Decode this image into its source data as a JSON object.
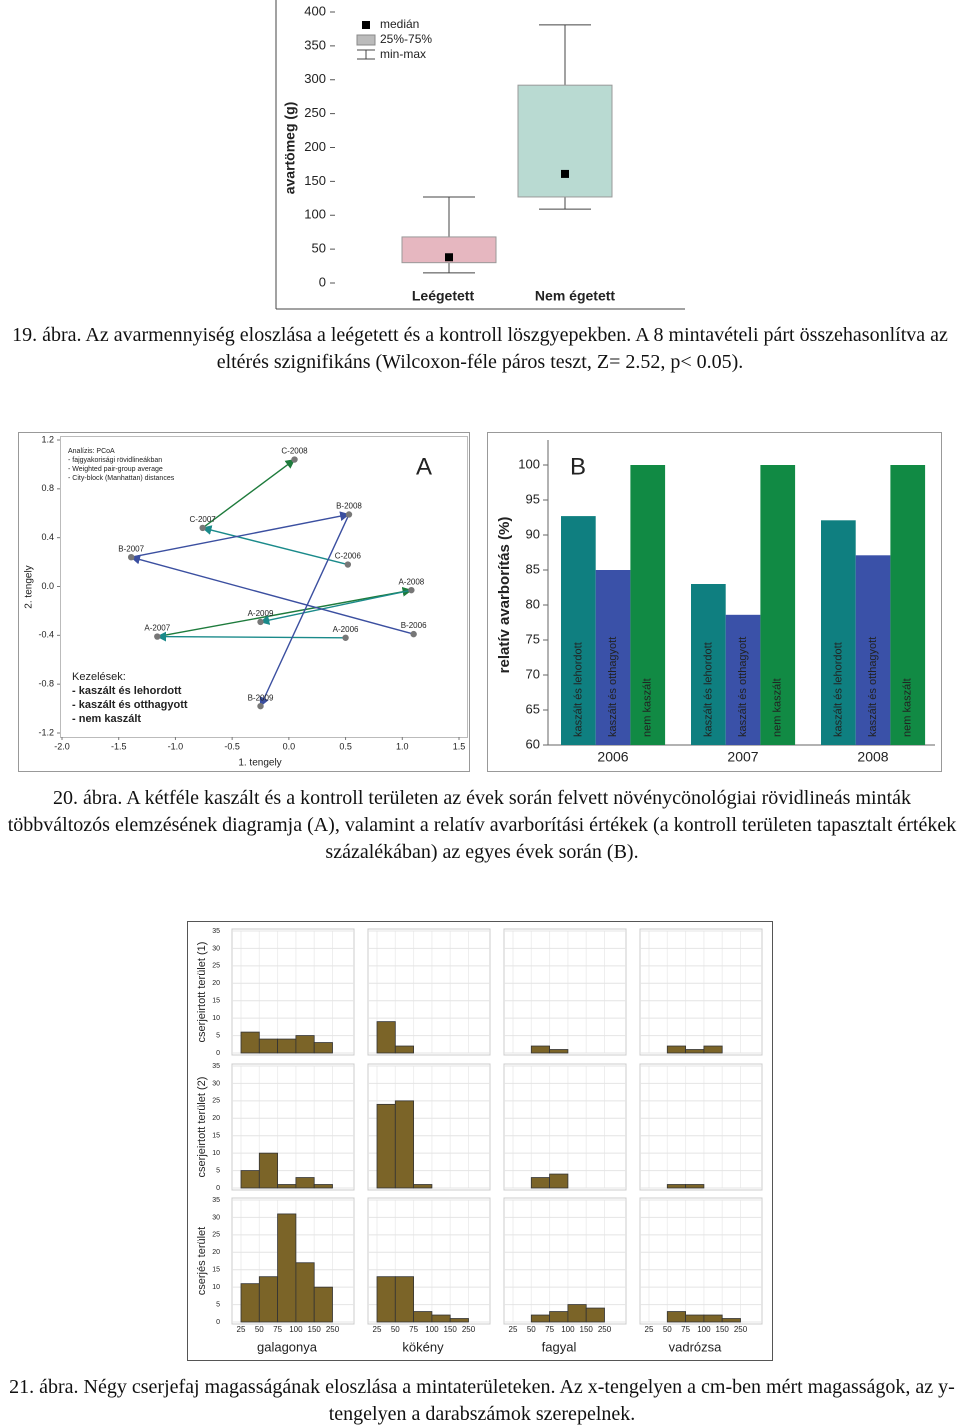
{
  "chart_data": [
    {
      "type": "box",
      "categories": [
        "Leégetett",
        "Nem égetett"
      ],
      "ylabel": "avartömeg (g)",
      "min": [
        15,
        109
      ],
      "q1": [
        30,
        127
      ],
      "median": [
        38,
        161
      ],
      "q3": [
        68,
        292
      ],
      "max": [
        127,
        381
      ],
      "colors": [
        "#e6b7c0",
        "#b9dad2"
      ],
      "ylim": [
        0,
        400
      ],
      "yticks": [
        0,
        50,
        100,
        150,
        200,
        250,
        300,
        350,
        400
      ],
      "legend": {
        "median": "medián",
        "box": "25%-75%",
        "whisker": "min-max"
      }
    },
    {
      "type": "scatter",
      "label": "A",
      "xlabel": "1. tengely",
      "ylabel": "2. tengely",
      "notes": [
        "Analízis: PCoA",
        "- fajgyakorisági rövidlineákban",
        "- Weighted pair-group average",
        "- City-block (Manhattan) distances"
      ],
      "legend_title": "Kezelések:",
      "series": [
        {
          "name": "- kaszált és lehordott",
          "color": "#1a8a8a"
        },
        {
          "name": "- kaszált és otthagyott",
          "color": "#3b4fa0"
        },
        {
          "name": "- nem kaszált",
          "color": "#1e7b3c"
        }
      ],
      "points": [
        {
          "label": "C-2008",
          "x": 0.05,
          "y": 1.04
        },
        {
          "label": "B-2008",
          "x": 0.53,
          "y": 0.59
        },
        {
          "label": "C-2007",
          "x": -0.76,
          "y": 0.48
        },
        {
          "label": "B-2007",
          "x": -1.39,
          "y": 0.24
        },
        {
          "label": "C-2006",
          "x": 0.52,
          "y": 0.18
        },
        {
          "label": "A-2008",
          "x": 1.08,
          "y": -0.03
        },
        {
          "label": "A-2007",
          "x": -1.16,
          "y": -0.41
        },
        {
          "label": "A-2006",
          "x": 0.5,
          "y": -0.42
        },
        {
          "label": "B-2006",
          "x": 1.1,
          "y": -0.39
        },
        {
          "label": "A-2009",
          "x": -0.25,
          "y": -0.29
        },
        {
          "label": "B-2009",
          "x": -0.25,
          "y": -0.98
        }
      ],
      "xlim": [
        -2,
        1.5
      ],
      "ylim": [
        -1.2,
        1.2
      ],
      "xticks": [
        {
          "value": -2,
          "label": "-2.0"
        },
        -1.5,
        {
          "value": -1,
          "label": "-1.0"
        },
        -0.5,
        {
          "value": 0,
          "label": "0.0"
        },
        0.5,
        {
          "value": 1,
          "label": "1.0"
        },
        1.5
      ],
      "yticks": [
        1.2,
        0.8,
        0.4,
        {
          "value": 0,
          "label": "0.0"
        },
        -0.4,
        -0.8,
        -1.2
      ]
    },
    {
      "type": "bar",
      "label": "B",
      "ylabel": "relatív avarborítás (%)",
      "categories": [
        "2006",
        "2007",
        "2008"
      ],
      "series": [
        {
          "name": "kaszált és lehordott",
          "color": "#0f7f80",
          "values": [
            92.7,
            83,
            92.1
          ]
        },
        {
          "name": "kaszált és otthagyott",
          "color": "#3a51a8",
          "values": [
            85,
            78.6,
            87.1
          ]
        },
        {
          "name": "nem kaszált",
          "color": "#118a44",
          "values": [
            100,
            100,
            100
          ]
        }
      ],
      "ylim": [
        60,
        100
      ],
      "yticks": [
        60,
        65,
        70,
        75,
        80,
        85,
        90,
        95,
        100
      ]
    },
    {
      "type": "histogram",
      "columns": [
        "galagonya",
        "kökény",
        "fagyal",
        "vadrózsa"
      ],
      "rows": [
        "cserjeirtott terület (1)",
        "cserjeirtott terület (2)",
        "cserjés terület"
      ],
      "bins": [
        "25",
        "50",
        "75",
        "100",
        "150",
        "250"
      ],
      "color": "#7b6428",
      "counts": [
        [
          [
            6,
            4,
            4,
            5,
            3
          ],
          [
            9,
            2,
            0,
            0,
            0
          ],
          [
            0,
            2,
            1,
            0,
            0
          ],
          [
            0,
            2,
            1,
            2,
            0
          ]
        ],
        [
          [
            5,
            10,
            1,
            3,
            1
          ],
          [
            24,
            25,
            1,
            0,
            0
          ],
          [
            0,
            3,
            4,
            0,
            0
          ],
          [
            0,
            1,
            1,
            0,
            0
          ]
        ],
        [
          [
            11,
            13,
            31,
            17,
            10
          ],
          [
            13,
            13,
            3,
            2,
            1
          ],
          [
            0,
            2,
            3,
            5,
            4
          ],
          [
            0,
            3,
            2,
            2,
            1
          ]
        ]
      ],
      "ylim": [
        0,
        35
      ],
      "yticks": [
        0,
        5,
        10,
        15,
        20,
        25,
        30,
        35
      ]
    }
  ],
  "captions": [
    "19. ábra. Az avarmennyiség eloszlása a leégetett és a kontroll löszgyepekben. A 8 mintavételi párt összehasonlítva az eltérés szignifikáns (Wilcoxon-féle páros teszt, Z= 2.52, p< 0.05).",
    "20. ábra. A kétféle kaszált és a kontroll területen az évek során felvett növénycönológiai rövidlineás minták többváltozós elemzésének diagramja (A), valamint a relatív avarborítási értékek (a kontroll területen tapasztalt értékek százalékában) az egyes évek során (B).",
    "21. ábra. Négy cserjefaj magasságának eloszlása a mintaterületeken. Az x-tengelyen a cm-ben mért magasságok, az y-tengelyen a darabszámok szerepelnek."
  ]
}
